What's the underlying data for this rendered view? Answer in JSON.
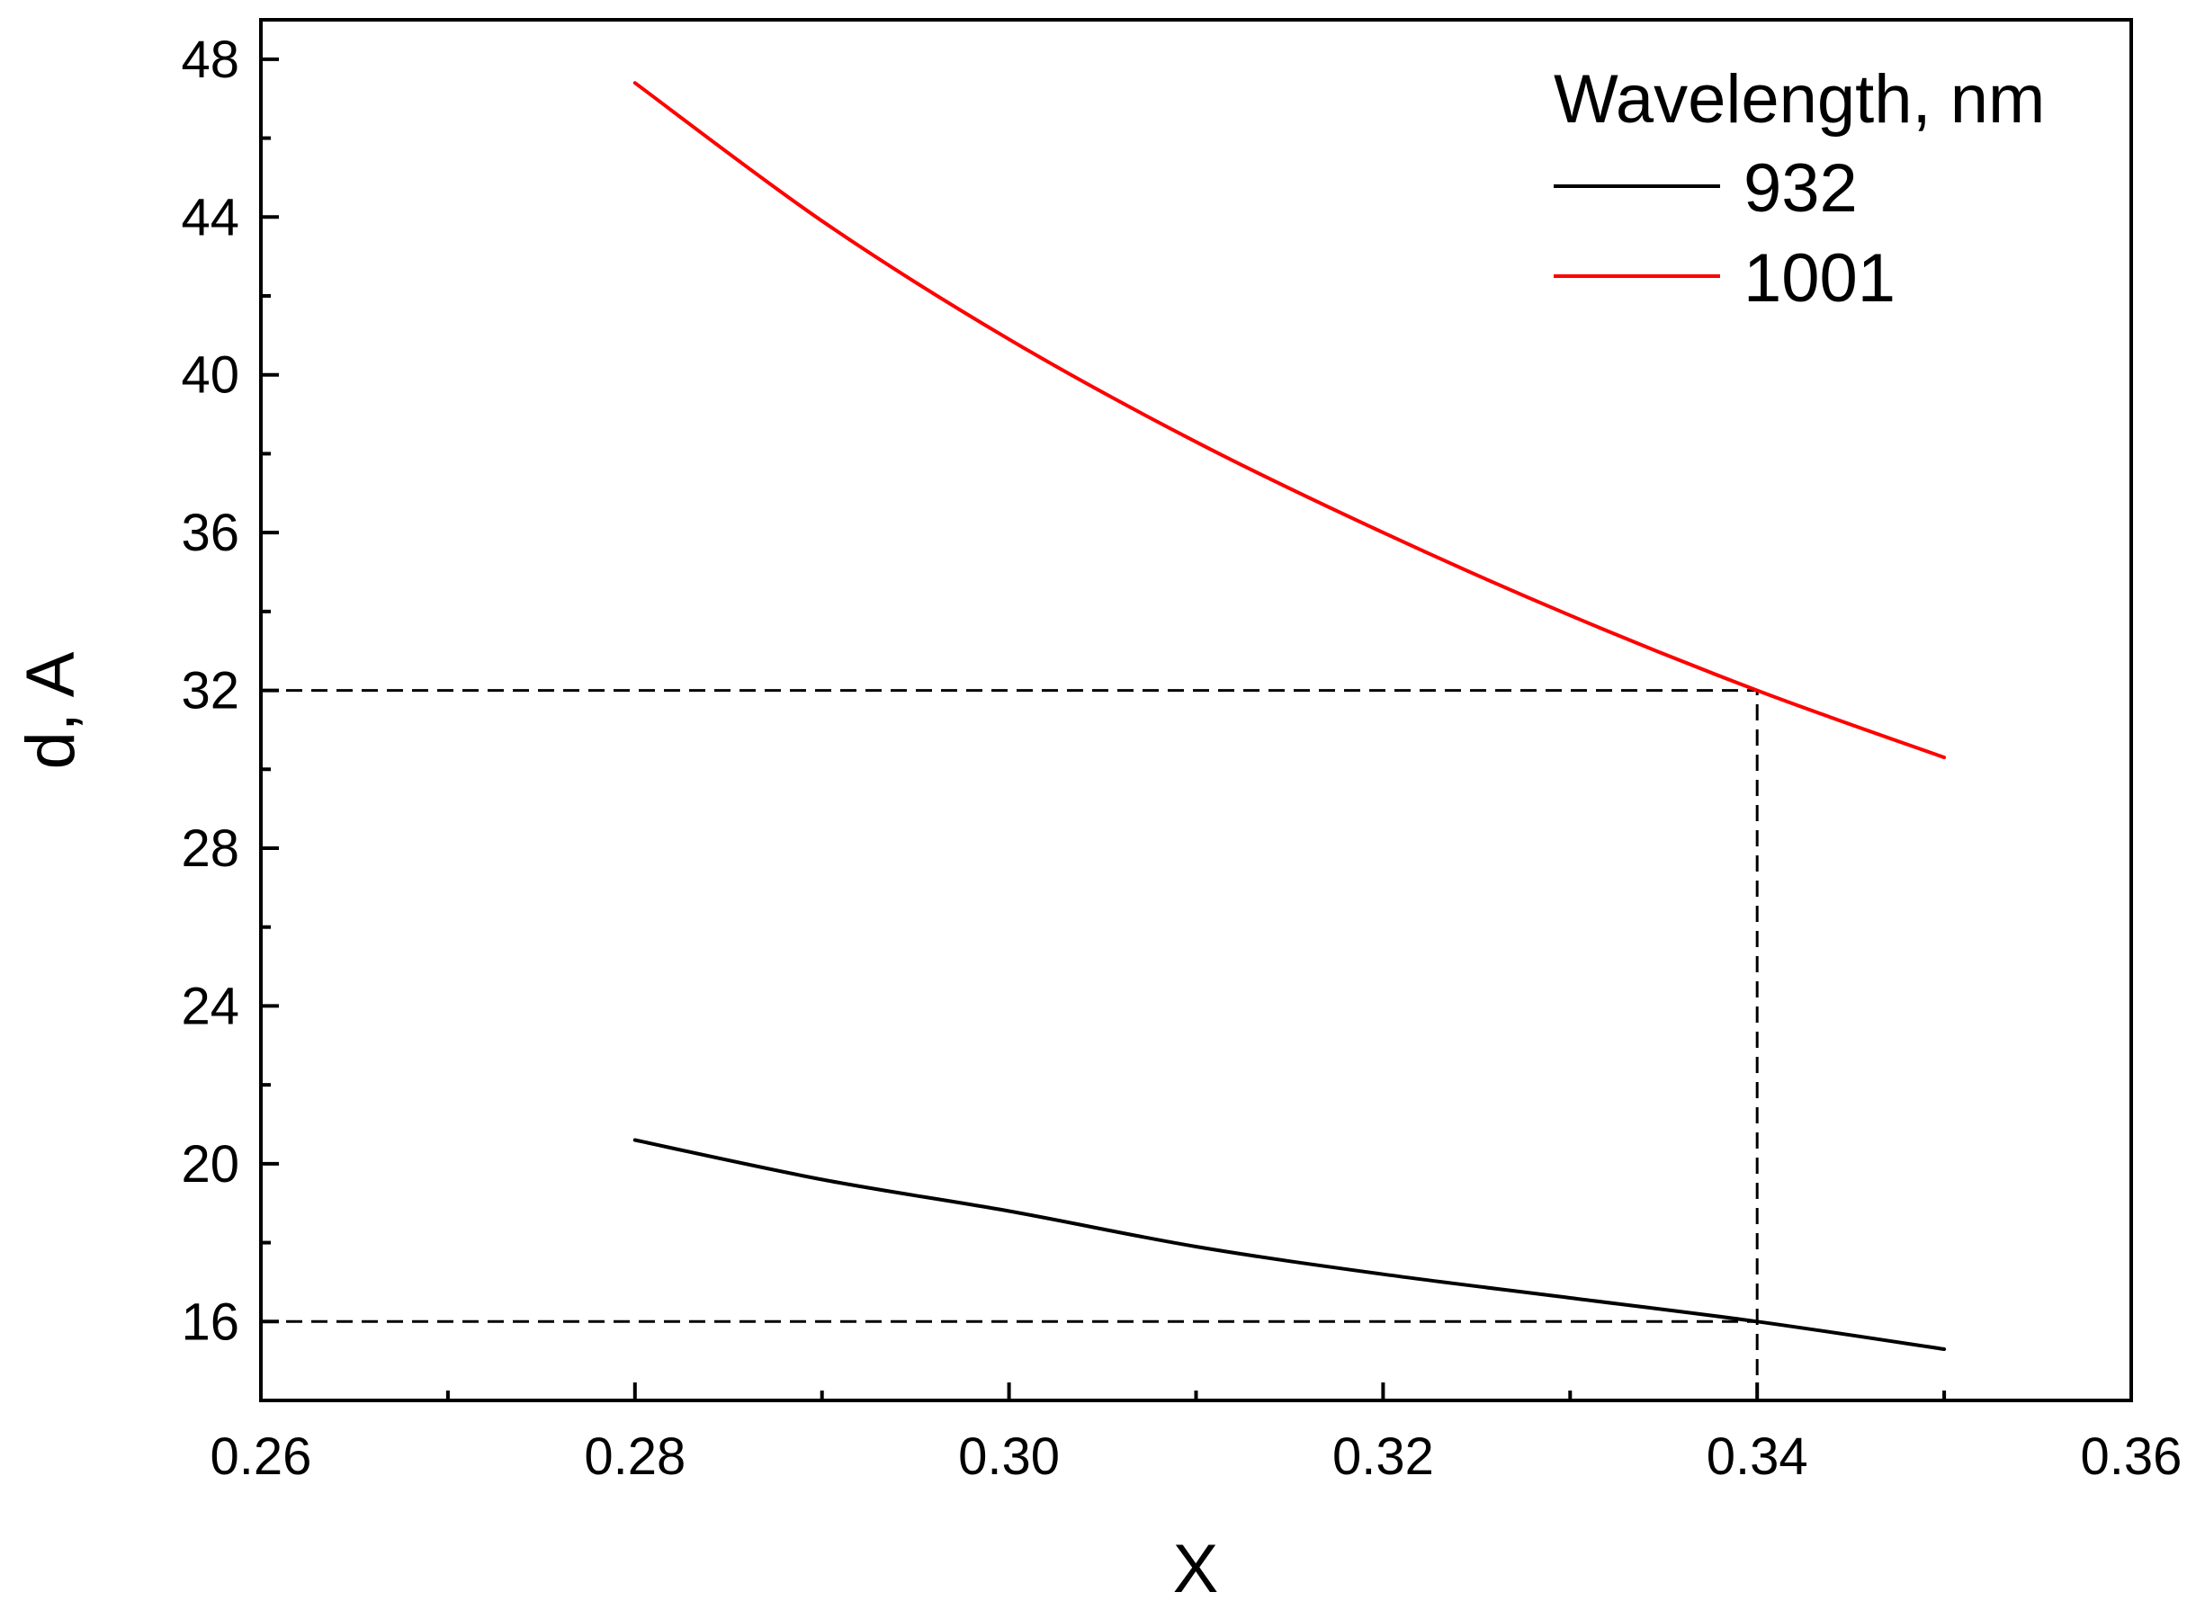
{
  "chart_data": {
    "type": "line",
    "title": "",
    "xlabel": "X",
    "ylabel": "d, A",
    "xlim": [
      0.26,
      0.36
    ],
    "ylim": [
      14,
      49
    ],
    "x_ticks": [
      0.26,
      0.28,
      0.3,
      0.32,
      0.34,
      0.36
    ],
    "x_tick_labels": [
      "0.26",
      "0.28",
      "0.30",
      "0.32",
      "0.34",
      "0.36"
    ],
    "y_ticks": [
      16,
      20,
      24,
      28,
      32,
      36,
      40,
      44,
      48
    ],
    "y_tick_labels": [
      "16",
      "20",
      "24",
      "28",
      "32",
      "36",
      "40",
      "44",
      "48"
    ],
    "grid": false,
    "legend": {
      "title": "Wavelength, nm",
      "position": "top-right"
    },
    "series": [
      {
        "name": "932",
        "color": "#000000",
        "x": [
          0.28,
          0.29,
          0.3,
          0.31,
          0.32,
          0.33,
          0.34,
          0.35
        ],
        "y": [
          20.6,
          19.6,
          18.8,
          17.9,
          17.2,
          16.6,
          16.0,
          15.3
        ]
      },
      {
        "name": "1001",
        "color": "#ff0000",
        "x": [
          0.28,
          0.29,
          0.3,
          0.31,
          0.32,
          0.33,
          0.34,
          0.35
        ],
        "y": [
          47.4,
          43.9,
          40.9,
          38.3,
          36.0,
          33.9,
          32.0,
          30.3
        ]
      }
    ],
    "reference_lines": [
      {
        "type": "horizontal",
        "y": 32,
        "x_from": 0.26,
        "x_to": 0.34,
        "style": "dashed"
      },
      {
        "type": "horizontal",
        "y": 16,
        "x_from": 0.26,
        "x_to": 0.34,
        "style": "dashed"
      },
      {
        "type": "vertical",
        "x": 0.34,
        "y_from": 14,
        "y_to": 32,
        "style": "dashed"
      }
    ]
  }
}
